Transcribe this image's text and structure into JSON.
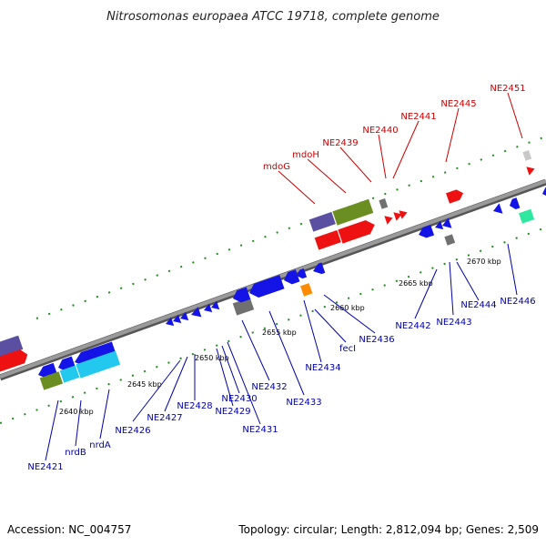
{
  "title": "Nitrosomonas europaea ATCC 19718, complete genome",
  "footer": {
    "accession": "Accession: NC_004757",
    "summary": "Topology: circular; Length: 2,812,094 bp; Genes: 2,509"
  },
  "scale_labels": [
    "2640 kbp",
    "2645 kbp",
    "2650 kbp",
    "2655 kbp",
    "2660 kbp",
    "2665 kbp",
    "2670 kbp"
  ],
  "labels_top": [
    "mdoG",
    "mdoH",
    "NE2439",
    "NE2440",
    "NE2441",
    "NE2445",
    "NE2451"
  ],
  "labels_bottom": [
    "NE2421",
    "nrdB",
    "nrdA",
    "NE2426",
    "NE2427",
    "NE2428",
    "NE2429",
    "NE2430",
    "NE2431",
    "NE2432",
    "NE2433",
    "NE2434",
    "fecI",
    "NE2436",
    "NE2442",
    "NE2443",
    "NE2444",
    "NE2446"
  ],
  "colors": {
    "backbone": "#8a8a8a",
    "tick": "#228b22",
    "label_top": "#cc0000",
    "label_bottom": "#0000aa",
    "gene_blue": "#1414e6",
    "gene_red": "#ee1111",
    "gene_olive": "#6b8e23",
    "gene_cyan": "#22c8ee",
    "gene_purple": "#5a4fa0",
    "gene_gray": "#707070",
    "gene_orange": "#ff8c00",
    "gene_teal": "#2ee8a0"
  }
}
